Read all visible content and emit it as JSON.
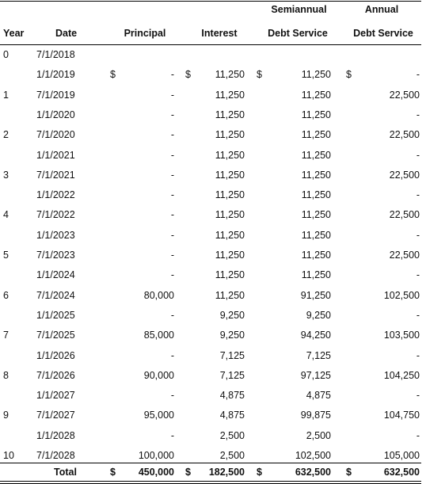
{
  "header": {
    "row1": {
      "semiannual": "Semiannual",
      "annual": "Annual"
    },
    "row2": {
      "year": "Year",
      "date": "Date",
      "principal": "Principal",
      "interest": "Interest",
      "semiannual": "Debt Service",
      "annual": "Debt Service"
    }
  },
  "rows": [
    {
      "year": "0",
      "date": "7/1/2018",
      "principal_sym": "",
      "principal": "",
      "interest_sym": "",
      "interest": "",
      "semi_sym": "",
      "semi": "",
      "annual_sym": "",
      "annual": ""
    },
    {
      "year": "",
      "date": "1/1/2019",
      "principal_sym": "$",
      "principal": "-",
      "interest_sym": "$",
      "interest": "11,250",
      "semi_sym": "$",
      "semi": "11,250",
      "annual_sym": "$",
      "annual": "-"
    },
    {
      "year": "1",
      "date": "7/1/2019",
      "principal_sym": "",
      "principal": "-",
      "interest_sym": "",
      "interest": "11,250",
      "semi_sym": "",
      "semi": "11,250",
      "annual_sym": "",
      "annual": "22,500"
    },
    {
      "year": "",
      "date": "1/1/2020",
      "principal_sym": "",
      "principal": "-",
      "interest_sym": "",
      "interest": "11,250",
      "semi_sym": "",
      "semi": "11,250",
      "annual_sym": "",
      "annual": "-"
    },
    {
      "year": "2",
      "date": "7/1/2020",
      "principal_sym": "",
      "principal": "-",
      "interest_sym": "",
      "interest": "11,250",
      "semi_sym": "",
      "semi": "11,250",
      "annual_sym": "",
      "annual": "22,500"
    },
    {
      "year": "",
      "date": "1/1/2021",
      "principal_sym": "",
      "principal": "-",
      "interest_sym": "",
      "interest": "11,250",
      "semi_sym": "",
      "semi": "11,250",
      "annual_sym": "",
      "annual": "-"
    },
    {
      "year": "3",
      "date": "7/1/2021",
      "principal_sym": "",
      "principal": "-",
      "interest_sym": "",
      "interest": "11,250",
      "semi_sym": "",
      "semi": "11,250",
      "annual_sym": "",
      "annual": "22,500"
    },
    {
      "year": "",
      "date": "1/1/2022",
      "principal_sym": "",
      "principal": "-",
      "interest_sym": "",
      "interest": "11,250",
      "semi_sym": "",
      "semi": "11,250",
      "annual_sym": "",
      "annual": "-"
    },
    {
      "year": "4",
      "date": "7/1/2022",
      "principal_sym": "",
      "principal": "-",
      "interest_sym": "",
      "interest": "11,250",
      "semi_sym": "",
      "semi": "11,250",
      "annual_sym": "",
      "annual": "22,500"
    },
    {
      "year": "",
      "date": "1/1/2023",
      "principal_sym": "",
      "principal": "-",
      "interest_sym": "",
      "interest": "11,250",
      "semi_sym": "",
      "semi": "11,250",
      "annual_sym": "",
      "annual": "-"
    },
    {
      "year": "5",
      "date": "7/1/2023",
      "principal_sym": "",
      "principal": "-",
      "interest_sym": "",
      "interest": "11,250",
      "semi_sym": "",
      "semi": "11,250",
      "annual_sym": "",
      "annual": "22,500"
    },
    {
      "year": "",
      "date": "1/1/2024",
      "principal_sym": "",
      "principal": "-",
      "interest_sym": "",
      "interest": "11,250",
      "semi_sym": "",
      "semi": "11,250",
      "annual_sym": "",
      "annual": "-"
    },
    {
      "year": "6",
      "date": "7/1/2024",
      "principal_sym": "",
      "principal": "80,000",
      "interest_sym": "",
      "interest": "11,250",
      "semi_sym": "",
      "semi": "91,250",
      "annual_sym": "",
      "annual": "102,500"
    },
    {
      "year": "",
      "date": "1/1/2025",
      "principal_sym": "",
      "principal": "-",
      "interest_sym": "",
      "interest": "9,250",
      "semi_sym": "",
      "semi": "9,250",
      "annual_sym": "",
      "annual": "-"
    },
    {
      "year": "7",
      "date": "7/1/2025",
      "principal_sym": "",
      "principal": "85,000",
      "interest_sym": "",
      "interest": "9,250",
      "semi_sym": "",
      "semi": "94,250",
      "annual_sym": "",
      "annual": "103,500"
    },
    {
      "year": "",
      "date": "1/1/2026",
      "principal_sym": "",
      "principal": "-",
      "interest_sym": "",
      "interest": "7,125",
      "semi_sym": "",
      "semi": "7,125",
      "annual_sym": "",
      "annual": "-"
    },
    {
      "year": "8",
      "date": "7/1/2026",
      "principal_sym": "",
      "principal": "90,000",
      "interest_sym": "",
      "interest": "7,125",
      "semi_sym": "",
      "semi": "97,125",
      "annual_sym": "",
      "annual": "104,250"
    },
    {
      "year": "",
      "date": "1/1/2027",
      "principal_sym": "",
      "principal": "-",
      "interest_sym": "",
      "interest": "4,875",
      "semi_sym": "",
      "semi": "4,875",
      "annual_sym": "",
      "annual": "-"
    },
    {
      "year": "9",
      "date": "7/1/2027",
      "principal_sym": "",
      "principal": "95,000",
      "interest_sym": "",
      "interest": "4,875",
      "semi_sym": "",
      "semi": "99,875",
      "annual_sym": "",
      "annual": "104,750"
    },
    {
      "year": "",
      "date": "1/1/2028",
      "principal_sym": "",
      "principal": "-",
      "interest_sym": "",
      "interest": "2,500",
      "semi_sym": "",
      "semi": "2,500",
      "annual_sym": "",
      "annual": "-"
    },
    {
      "year": "10",
      "date": "7/1/2028",
      "principal_sym": "",
      "principal": "100,000",
      "interest_sym": "",
      "interest": "2,500",
      "semi_sym": "",
      "semi": "102,500",
      "annual_sym": "",
      "annual": "105,000"
    }
  ],
  "total": {
    "label": "Total",
    "principal_sym": "$",
    "principal": "450,000",
    "interest_sym": "$",
    "interest": "182,500",
    "semi_sym": "$",
    "semi": "632,500",
    "annual_sym": "$",
    "annual": "632,500"
  }
}
